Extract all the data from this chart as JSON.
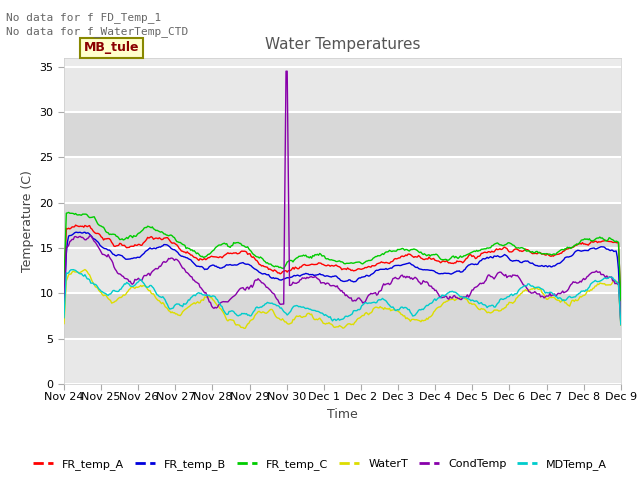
{
  "title": "Water Temperatures",
  "xlabel": "Time",
  "ylabel": "Temperature (C)",
  "ylim": [
    0,
    36
  ],
  "yticks": [
    0,
    5,
    10,
    15,
    20,
    25,
    30,
    35
  ],
  "annotations": [
    "No data for f FD_Temp_1",
    "No data for f_WaterTemp_CTD"
  ],
  "legend_label": "MB_tule",
  "legend_colors": {
    "FR_temp_A": "#ff0000",
    "FR_temp_B": "#0000dd",
    "FR_temp_C": "#00cc00",
    "WaterT": "#dddd00",
    "CondTemp": "#8800aa",
    "MDTemp_A": "#00cccc"
  },
  "bg_upper": "#f0f0f0",
  "bg_lower": "#d8d8d8",
  "n_points": 480,
  "seed": 7
}
